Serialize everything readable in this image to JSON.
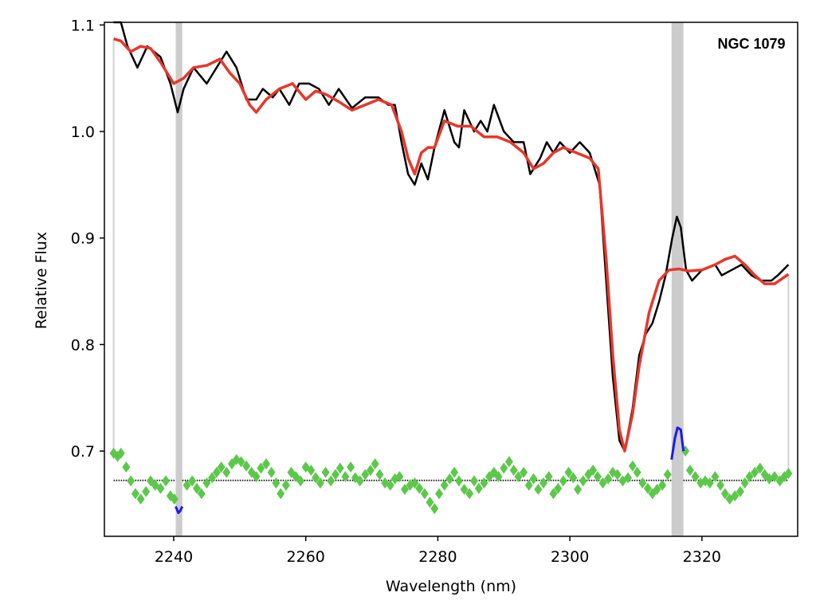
{
  "chart_data": {
    "type": "line",
    "title": "",
    "xlabel": "Wavelength (nm)",
    "ylabel": "Relative Flux",
    "xlim": [
      2229.5,
      2334.5
    ],
    "ylim": [
      0.62,
      1.1025
    ],
    "grid": false,
    "xticks": [
      {
        "value": 2240,
        "label": "2240"
      },
      {
        "value": 2260,
        "label": "2260"
      },
      {
        "value": 2280,
        "label": "2280"
      },
      {
        "value": 2300,
        "label": "2300"
      },
      {
        "value": 2320,
        "label": "2320"
      }
    ],
    "yticks": [
      {
        "value": 0.7,
        "label": "0.7"
      },
      {
        "value": 0.8,
        "label": "0.8"
      },
      {
        "value": 0.9,
        "label": "0.9"
      },
      {
        "value": 1.0,
        "label": "1.0"
      },
      {
        "value": 1.1,
        "label": "1.1"
      }
    ],
    "annotations": [
      {
        "text": "NGC 1079",
        "x": 2327.5,
        "y": 1.078
      }
    ],
    "colors": {
      "data": "#000000",
      "fit": "#e8362a",
      "residuals": "#5cc84a",
      "masked_residuals": "#1a1aee",
      "masked_band": "#cccccc",
      "zero_line": "#222222"
    },
    "masked_regions": [
      [
        2240.3,
        2241.3
      ],
      [
        2315.4,
        2317.2
      ]
    ],
    "fit_range_markers": [
      2230.9,
      2333.1
    ],
    "zero_level": 0.6725,
    "series": [
      {
        "name": "",
        "role": "data",
        "x": [
          2230.9,
          2232,
          2233,
          2234.5,
          2236,
          2238,
          2239.5,
          2240.6,
          2241.5,
          2243,
          2245,
          2247,
          2248,
          2249.5,
          2251,
          2252.5,
          2253.5,
          2255,
          2256,
          2257.5,
          2259,
          2260.5,
          2262,
          2263.5,
          2265,
          2267,
          2269,
          2271,
          2272.5,
          2273.5,
          2274.5,
          2275.5,
          2276.5,
          2277.5,
          2278.5,
          2279.5,
          2281,
          2282.5,
          2283.2,
          2284,
          2285.5,
          2286.5,
          2287.5,
          2288.5,
          2290,
          2291.5,
          2293,
          2294,
          2295.5,
          2296.5,
          2297.5,
          2298.5,
          2300,
          2301.5,
          2303,
          2304.5,
          2305.5,
          2306.5,
          2307.5,
          2308.3,
          2309.5,
          2310.5,
          2311.5,
          2312.5,
          2313.5,
          2314.5,
          2315.5,
          2316.2,
          2316.8,
          2317.6,
          2318.5,
          2320,
          2322,
          2323,
          2324.5,
          2326,
          2327.5,
          2329,
          2330.5,
          2331.5,
          2333.1
        ],
        "y": [
          1.12,
          1.105,
          1.08,
          1.06,
          1.08,
          1.07,
          1.045,
          1.018,
          1.04,
          1.06,
          1.045,
          1.065,
          1.075,
          1.06,
          1.03,
          1.03,
          1.04,
          1.032,
          1.04,
          1.025,
          1.045,
          1.045,
          1.04,
          1.025,
          1.04,
          1.022,
          1.032,
          1.032,
          1.025,
          1.025,
          0.99,
          0.96,
          0.95,
          0.97,
          0.955,
          0.985,
          1.02,
          0.99,
          0.985,
          1.02,
          1.0,
          1.01,
          1.0,
          1.025,
          1.0,
          0.99,
          0.99,
          0.96,
          0.975,
          0.99,
          0.98,
          0.99,
          0.98,
          0.99,
          0.98,
          0.95,
          0.86,
          0.77,
          0.71,
          0.7,
          0.74,
          0.79,
          0.81,
          0.82,
          0.84,
          0.865,
          0.9,
          0.92,
          0.91,
          0.87,
          0.86,
          0.87,
          0.875,
          0.865,
          0.87,
          0.875,
          0.865,
          0.86,
          0.86,
          0.865,
          0.875
        ]
      },
      {
        "name": "",
        "role": "fit",
        "x": [
          2230.9,
          2232,
          2233.5,
          2235,
          2236.5,
          2238,
          2240,
          2241.5,
          2243,
          2245,
          2247,
          2248.5,
          2250,
          2251.5,
          2252.5,
          2254,
          2256,
          2258,
          2260,
          2261.5,
          2263,
          2265,
          2267,
          2269,
          2271,
          2273,
          2274.5,
          2275.5,
          2276.5,
          2277.5,
          2278.5,
          2279.5,
          2281,
          2283,
          2285,
          2287,
          2289,
          2291,
          2293,
          2294.5,
          2296,
          2297.5,
          2299,
          2301,
          2303,
          2304.3,
          2305.5,
          2306.5,
          2307.5,
          2308.3,
          2309.5,
          2310.5,
          2312,
          2313.5,
          2315,
          2316.5,
          2318,
          2320,
          2322,
          2323.5,
          2325,
          2326.5,
          2328,
          2329.5,
          2331,
          2333.1
        ],
        "y": [
          1.087,
          1.085,
          1.075,
          1.08,
          1.078,
          1.065,
          1.045,
          1.05,
          1.06,
          1.062,
          1.068,
          1.055,
          1.045,
          1.025,
          1.018,
          1.03,
          1.04,
          1.045,
          1.03,
          1.038,
          1.035,
          1.028,
          1.02,
          1.025,
          1.03,
          1.025,
          1.0,
          0.975,
          0.96,
          0.98,
          0.985,
          0.985,
          1.01,
          1.005,
          1.005,
          0.995,
          0.995,
          0.99,
          0.98,
          0.965,
          0.97,
          0.98,
          0.985,
          0.98,
          0.975,
          0.965,
          0.88,
          0.79,
          0.72,
          0.7,
          0.735,
          0.78,
          0.83,
          0.86,
          0.87,
          0.871,
          0.869,
          0.87,
          0.875,
          0.88,
          0.883,
          0.875,
          0.865,
          0.857,
          0.857,
          0.866
        ]
      },
      {
        "name": "",
        "role": "residuals",
        "x": [
          2230.9,
          2231.5,
          2232,
          2232.8,
          2233.5,
          2234.2,
          2235,
          2235.8,
          2236.5,
          2237.2,
          2238,
          2238.8,
          2239.5,
          2240.1,
          2242,
          2242.8,
          2243.5,
          2244.2,
          2245,
          2245.8,
          2246.5,
          2247.2,
          2248,
          2248.8,
          2249.5,
          2250.2,
          2251,
          2251.8,
          2252.5,
          2253.2,
          2254,
          2254.8,
          2255.5,
          2256.2,
          2257,
          2257.8,
          2258.5,
          2259.2,
          2260,
          2260.8,
          2261.5,
          2262.2,
          2263,
          2263.8,
          2264.5,
          2265.2,
          2266,
          2266.8,
          2267.5,
          2268.2,
          2269,
          2269.8,
          2270.5,
          2271.2,
          2272,
          2272.8,
          2273.5,
          2274.2,
          2275,
          2275.8,
          2276.5,
          2277.2,
          2278,
          2278.8,
          2279.5,
          2280.2,
          2281,
          2281.8,
          2282.5,
          2283.2,
          2284,
          2284.8,
          2285.5,
          2286.2,
          2287,
          2287.8,
          2288.5,
          2289.2,
          2290,
          2290.8,
          2291.5,
          2292.2,
          2293,
          2293.8,
          2294.5,
          2295.2,
          2296,
          2296.8,
          2297.5,
          2298.2,
          2299,
          2299.8,
          2300.5,
          2301.2,
          2302,
          2302.8,
          2303.5,
          2304.2,
          2305,
          2305.8,
          2306.5,
          2307.2,
          2308,
          2308.8,
          2309.5,
          2310.2,
          2311,
          2311.8,
          2312.5,
          2313.2,
          2314,
          2314.8,
          2317.5,
          2318.2,
          2319,
          2319.8,
          2320.5,
          2321.2,
          2322,
          2322.8,
          2323.5,
          2324.2,
          2325,
          2325.8,
          2326.5,
          2327.2,
          2328,
          2328.8,
          2329.5,
          2330.2,
          2331,
          2331.8,
          2332.5,
          2333.1
        ],
        "y": [
          0.698,
          0.695,
          0.698,
          0.685,
          0.672,
          0.66,
          0.655,
          0.662,
          0.672,
          0.668,
          0.665,
          0.672,
          0.658,
          0.655,
          0.668,
          0.672,
          0.665,
          0.66,
          0.67,
          0.675,
          0.68,
          0.685,
          0.68,
          0.688,
          0.692,
          0.69,
          0.686,
          0.68,
          0.676,
          0.684,
          0.688,
          0.68,
          0.67,
          0.66,
          0.668,
          0.68,
          0.676,
          0.672,
          0.685,
          0.682,
          0.675,
          0.67,
          0.68,
          0.672,
          0.678,
          0.684,
          0.676,
          0.685,
          0.675,
          0.672,
          0.678,
          0.682,
          0.688,
          0.678,
          0.67,
          0.668,
          0.674,
          0.676,
          0.664,
          0.668,
          0.67,
          0.665,
          0.66,
          0.652,
          0.646,
          0.66,
          0.668,
          0.674,
          0.68,
          0.672,
          0.664,
          0.66,
          0.672,
          0.665,
          0.67,
          0.676,
          0.68,
          0.676,
          0.684,
          0.69,
          0.682,
          0.676,
          0.68,
          0.668,
          0.674,
          0.664,
          0.67,
          0.676,
          0.66,
          0.665,
          0.672,
          0.68,
          0.675,
          0.664,
          0.672,
          0.678,
          0.682,
          0.676,
          0.67,
          0.674,
          0.68,
          0.678,
          0.672,
          0.675,
          0.686,
          0.68,
          0.67,
          0.665,
          0.66,
          0.664,
          0.668,
          0.678,
          0.7,
          0.682,
          0.676,
          0.67,
          0.672,
          0.67,
          0.676,
          0.668,
          0.66,
          0.655,
          0.658,
          0.662,
          0.67,
          0.676,
          0.68,
          0.684,
          0.678,
          0.674,
          0.676,
          0.672,
          0.676,
          0.679
        ]
      },
      {
        "name": "",
        "role": "masked_residuals",
        "x": [
          2240.3,
          2240.7,
          2241.0,
          2241.3
        ],
        "y": [
          0.648,
          0.642,
          0.644,
          0.648
        ]
      },
      {
        "name": "",
        "role": "masked_residuals",
        "x": [
          2315.4,
          2315.9,
          2316.3,
          2316.8,
          2317.2
        ],
        "y": [
          0.692,
          0.712,
          0.722,
          0.72,
          0.7
        ]
      }
    ]
  }
}
